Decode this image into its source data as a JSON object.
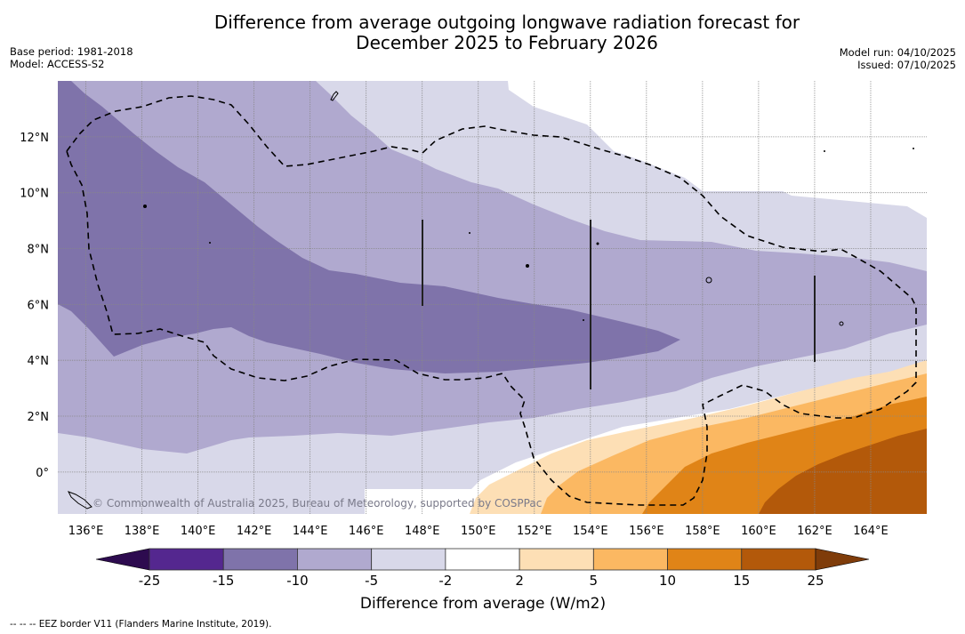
{
  "title": {
    "line1": "Difference from average outgoing longwave radiation forecast for",
    "line2": "December 2025 to February 2026"
  },
  "meta_left": {
    "base_period": "Base period: 1981-2018",
    "model": "Model: ACCESS-S2"
  },
  "meta_right": {
    "model_run": "Model run: 04/10/2025",
    "issued": "Issued: 07/10/2025"
  },
  "copyright": "© Commonwealth of Australia 2025, Bureau of Meteorology, supported by COSPPac",
  "footnote": "--  --  -- EEZ border V11 (Flanders Marine Institute, 2019).",
  "chart_data": {
    "type": "heatmap",
    "title": "Difference from average outgoing longwave radiation forecast for December 2025 to February 2026",
    "xlabel": "",
    "ylabel": "",
    "x_range": [
      135,
      166
    ],
    "y_range": [
      -1.5,
      14
    ],
    "x_ticks": [
      "136°E",
      "138°E",
      "140°E",
      "142°E",
      "144°E",
      "146°E",
      "148°E",
      "150°E",
      "152°E",
      "154°E",
      "156°E",
      "158°E",
      "160°E",
      "162°E",
      "164°E"
    ],
    "x_tick_values": [
      136,
      138,
      140,
      142,
      144,
      146,
      148,
      150,
      152,
      154,
      156,
      158,
      160,
      162,
      164
    ],
    "y_ticks": [
      "0°",
      "2°N",
      "4°N",
      "6°N",
      "8°N",
      "10°N",
      "12°N"
    ],
    "y_tick_values": [
      0,
      2,
      4,
      6,
      8,
      10,
      12
    ],
    "grid": true,
    "colorbar": {
      "title": "Difference from average (W/m2)",
      "tick_labels": [
        "-25",
        "-15",
        "-10",
        "-5",
        "-2",
        "2",
        "5",
        "10",
        "15",
        "25"
      ],
      "levels": [
        -25,
        -15,
        -10,
        -5,
        -2,
        2,
        5,
        10,
        15,
        25
      ],
      "colors": [
        "#54278f",
        "#7f73aa",
        "#b0a9cf",
        "#d8d8e9",
        "#ffffff",
        "#fddfb5",
        "#fbb862",
        "#e08417",
        "#b3590a"
      ],
      "extend_low_color": "#2d0b4f",
      "extend_high_color": "#7f3c0a",
      "placement": "bottom"
    },
    "regions": [
      {
        "band": "-10 to -5",
        "description": "Broad band across most of the north/west of domain"
      },
      {
        "band": "-15 to -10",
        "description": "Western and central core from 135°E to ~157°E, 4–12°N"
      },
      {
        "band": "-5 to -2",
        "description": "Northern fringe east of ~148°E and southern band near equator west of ~150°E"
      },
      {
        "band": "-2 to 2",
        "description": "North-east corner and a diagonal band south-east of 150°E"
      },
      {
        "band": "2 to 5",
        "description": "South-east near equator from ~150°E"
      },
      {
        "band": "5 to 10",
        "description": "South-east from ~152°E"
      },
      {
        "band": "10 to 15",
        "description": "South-east from ~156°E"
      },
      {
        "band": "15 to 25",
        "description": "Far south-east corner from ~160°E"
      }
    ],
    "legend": "EEZ border V11 (dashed line)"
  }
}
